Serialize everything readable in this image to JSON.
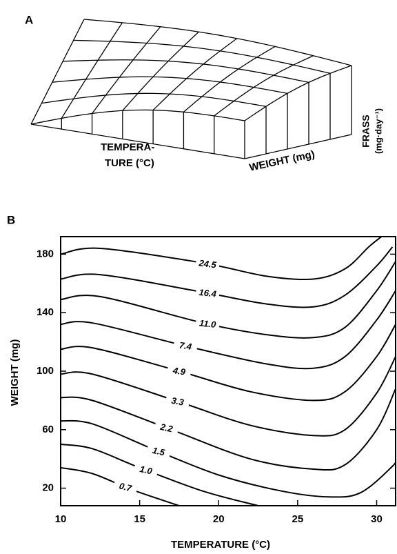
{
  "chart_data": [
    {
      "type": "surface",
      "panel": "A",
      "x_label": [
        "TEMPERA-",
        "TURE (°C)"
      ],
      "y_label": "WEIGHT (mg)",
      "z_label": [
        "FRASS",
        "(mg·day⁻¹)"
      ]
    },
    {
      "type": "contour",
      "panel": "B",
      "x_label": "TEMPERATURE (°C)",
      "y_label": "WEIGHT (mg)",
      "xlim": [
        10,
        31.2
      ],
      "ylim": [
        8,
        192
      ],
      "xticks": [
        10,
        15,
        20,
        25,
        30
      ],
      "yticks": [
        20,
        60,
        100,
        140,
        180
      ],
      "series": [
        {
          "level": 0.7,
          "x": [
            10,
            12,
            14.5,
            17.5
          ],
          "y": [
            34,
            30,
            19,
            8
          ]
        },
        {
          "level": {
            "value": 1.0,
            "label": "1.0"
          },
          "x": [
            10,
            12,
            15,
            19,
            22.5
          ],
          "y": [
            50,
            47,
            34,
            18,
            8
          ]
        },
        {
          "level": 1.5,
          "x": [
            10,
            12,
            16,
            20,
            24,
            27,
            29,
            31,
            31.2
          ],
          "y": [
            66,
            64,
            46,
            29,
            18,
            14,
            17,
            35,
            40
          ]
        },
        {
          "level": 2.2,
          "x": [
            10,
            12,
            17,
            22,
            26,
            28,
            30,
            31.2
          ],
          "y": [
            82,
            80,
            60,
            40,
            33,
            36,
            60,
            88
          ]
        },
        {
          "level": 3.3,
          "x": [
            10,
            12,
            17.5,
            22,
            26,
            28,
            30,
            31.2
          ],
          "y": [
            98,
            98,
            79,
            63,
            56,
            60,
            85,
            110
          ]
        },
        {
          "level": 4.9,
          "x": [
            10,
            12,
            17.5,
            22,
            26,
            28,
            30,
            31.2
          ],
          "y": [
            115,
            116,
            100,
            86,
            80,
            86,
            110,
            132
          ]
        },
        {
          "level": 7.4,
          "x": [
            10,
            12,
            18,
            23,
            26,
            28,
            30,
            31.2
          ],
          "y": [
            132,
            133,
            117,
            105,
            102,
            110,
            135,
            155
          ]
        },
        {
          "level": {
            "value": 11.0,
            "label": "11.0"
          },
          "x": [
            10,
            12.5,
            19,
            23,
            26,
            28,
            30,
            31.2
          ],
          "y": [
            149,
            151,
            133,
            125,
            123,
            130,
            155,
            175
          ]
        },
        {
          "level": 16.4,
          "x": [
            10,
            12.5,
            19,
            23,
            26,
            28,
            30,
            31
          ],
          "y": [
            163,
            166,
            154,
            146,
            144,
            152,
            172,
            185
          ]
        },
        {
          "level": 24.5,
          "x": [
            10,
            12.5,
            19,
            23,
            26,
            28,
            29.5,
            30.3
          ],
          "y": [
            180,
            184,
            174,
            165,
            163,
            170,
            185,
            192
          ]
        }
      ]
    }
  ]
}
